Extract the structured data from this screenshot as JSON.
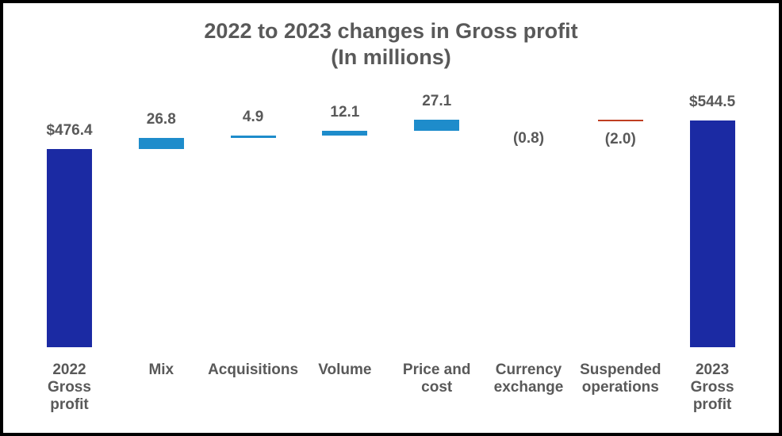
{
  "frame": {
    "border_color": "#000000",
    "background_color": "#ffffff"
  },
  "text_color": "#595959",
  "chart_data": {
    "type": "bar",
    "subtype": "waterfall",
    "title": "2022 to 2023 changes in Gross profit",
    "subtitle": "(In millions)",
    "xlabel": "",
    "ylabel": "",
    "grid": false,
    "legend": false,
    "ylim": [
      0,
      580
    ],
    "categories": [
      "2022 Gross profit",
      "Mix",
      "Acquisitions",
      "Volume",
      "Price and cost",
      "Currency exchange",
      "Suspended operations",
      "2023 Gross profit"
    ],
    "category_label_lines": [
      "2022\nGross\nprofit",
      "Mix",
      "Acquisitions",
      "Volume",
      "Price and\ncost",
      "Currency\nexchange",
      "Suspended\noperations",
      "2023\nGross\nprofit"
    ],
    "values": [
      476.4,
      26.8,
      4.9,
      12.1,
      27.1,
      -0.8,
      -2.0,
      544.5
    ],
    "value_labels": [
      "$476.4",
      "26.8",
      "4.9",
      "12.1",
      "27.1",
      "(0.8)",
      "(2.0)",
      "$544.5"
    ],
    "step_types": [
      "total",
      "increase",
      "increase",
      "increase",
      "increase",
      "decrease",
      "decrease",
      "total"
    ],
    "running_totals": [
      476.4,
      503.2,
      508.1,
      520.2,
      547.3,
      546.5,
      544.5,
      544.5
    ],
    "colors": {
      "total": "#1B2AA3",
      "increase": "#1E8CCB",
      "decrease": "#BF3E22",
      "label": "#595959"
    }
  }
}
